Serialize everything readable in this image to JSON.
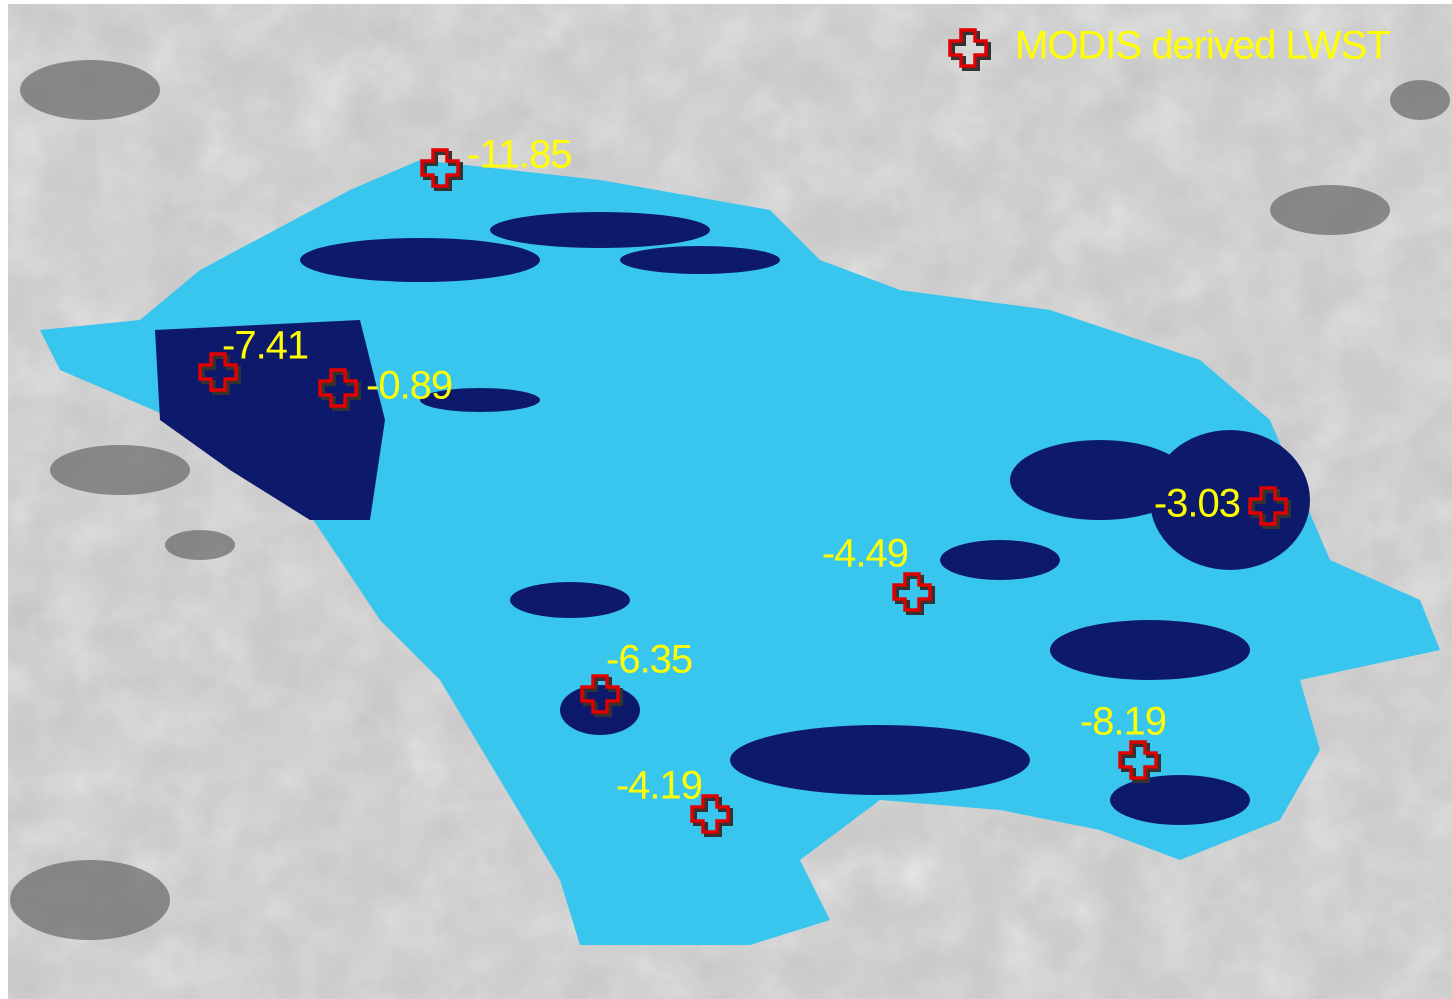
{
  "legend": {
    "label": "MODIS derived LWST"
  },
  "markers": [
    {
      "label": "-11.85"
    },
    {
      "label": "-7.41"
    },
    {
      "label": "-0.89"
    },
    {
      "label": "-3.03"
    },
    {
      "label": "-4.49"
    },
    {
      "label": "-6.35"
    },
    {
      "label": "-8.19"
    },
    {
      "label": "-4.19"
    }
  ]
}
